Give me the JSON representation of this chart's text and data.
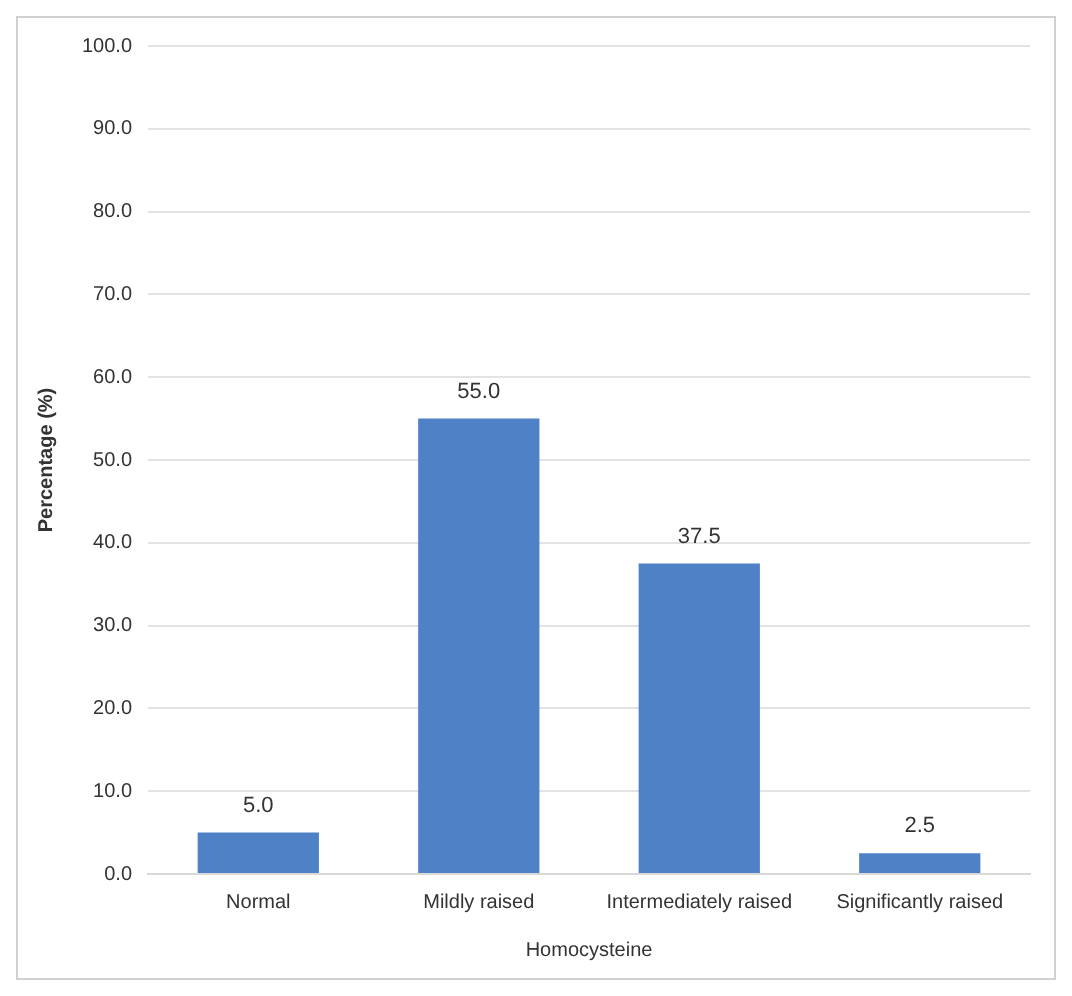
{
  "chart_data": {
    "type": "bar",
    "xlabel": "Homocysteine",
    "ylabel": "Percentage (%)",
    "categories": [
      "Normal",
      "Mildly raised",
      "Intermediately raised",
      "Significantly raised"
    ],
    "values": [
      5.0,
      55.0,
      37.5,
      2.5
    ],
    "value_labels": [
      "5.0",
      "55.0",
      "37.5",
      "2.5"
    ],
    "color": "#4f81c7",
    "ylim": [
      0,
      100
    ],
    "yticks": [
      {
        "value": 0,
        "label": "0.0"
      },
      {
        "value": 10,
        "label": "10.0"
      },
      {
        "value": 20,
        "label": "20.0"
      },
      {
        "value": 30,
        "label": "30.0"
      },
      {
        "value": 40,
        "label": "40.0"
      },
      {
        "value": 50,
        "label": "50.0"
      },
      {
        "value": 60,
        "label": "60.0"
      },
      {
        "value": 70,
        "label": "70.0"
      },
      {
        "value": 80,
        "label": "80.0"
      },
      {
        "value": 90,
        "label": "90.0"
      },
      {
        "value": 100,
        "label": "100.0"
      }
    ],
    "grid": "y"
  }
}
